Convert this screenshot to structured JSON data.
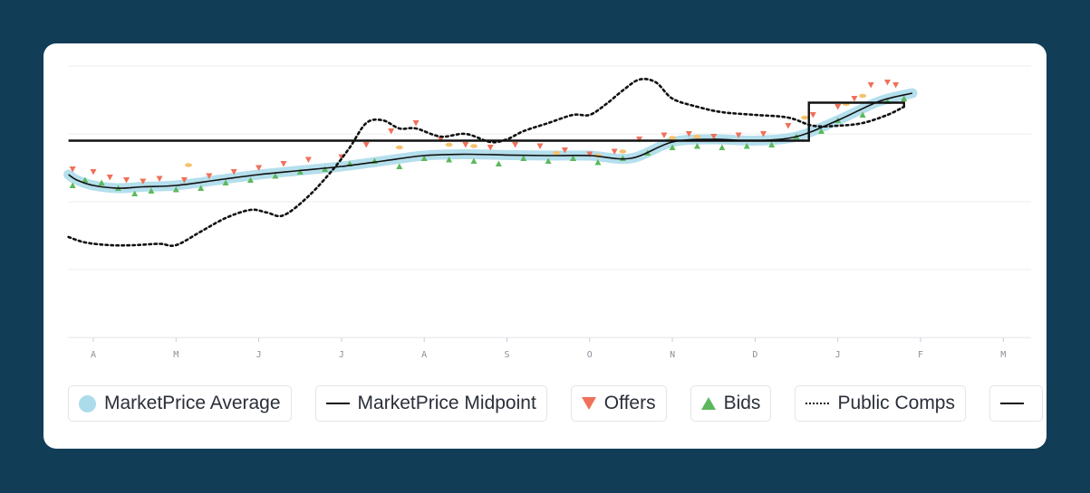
{
  "chart_data": {
    "type": "line",
    "title": "",
    "xlabel": "",
    "ylabel": "",
    "x_ticks": [
      "A",
      "M",
      "J",
      "J",
      "A",
      "S",
      "O",
      "N",
      "D",
      "J",
      "F",
      "M"
    ],
    "x_range": [
      0,
      11.3
    ],
    "y_range": [
      0,
      100
    ],
    "grid": true,
    "series": [
      {
        "name": "MarketPrice Average",
        "style": "thick light-blue band",
        "color": "#acdcea",
        "x": [
          -0.3,
          -0.2,
          0,
          0.3,
          0.6,
          1,
          1.5,
          2,
          2.5,
          3,
          3.5,
          4,
          4.5,
          5,
          5.5,
          6,
          6.5,
          7,
          7.5,
          8,
          8.5,
          9,
          9.5,
          9.9
        ],
        "values": [
          60,
          58,
          56,
          55,
          55.5,
          56,
          58,
          60,
          61.5,
          63,
          65,
          67,
          67.5,
          67.2,
          67,
          67,
          66,
          72,
          73,
          72.5,
          74,
          80,
          87,
          90
        ]
      },
      {
        "name": "MarketPrice Midpoint",
        "style": "solid black step line",
        "color": "#111111",
        "points": [
          [
            -0.3,
            72.5
          ],
          [
            8.65,
            72.5
          ],
          [
            8.65,
            86.5
          ],
          [
            9.8,
            86.5
          ],
          [
            9.8,
            85
          ]
        ]
      },
      {
        "name": "Offers",
        "style": "downward red triangles",
        "color": "#f0705a",
        "x": [
          -0.25,
          0,
          0.2,
          0.4,
          0.6,
          0.8,
          1.1,
          1.4,
          1.7,
          2,
          2.3,
          2.6,
          3,
          3.3,
          3.6,
          3.9,
          4.2,
          4.5,
          4.8,
          5.1,
          5.4,
          5.7,
          6,
          6.3,
          6.6,
          6.9,
          7.2,
          7.5,
          7.8,
          8.1,
          8.4,
          8.7,
          9,
          9.2,
          9.4,
          9.6,
          9.7
        ],
        "values": [
          62,
          61,
          59,
          58,
          57.5,
          58.5,
          58,
          59.5,
          61,
          62.5,
          64,
          65.5,
          66.5,
          71,
          76,
          79,
          73,
          71,
          70,
          71,
          70.5,
          69,
          67.5,
          68.5,
          73,
          74.5,
          75,
          74,
          74.5,
          75,
          78,
          82,
          85,
          88,
          93,
          94,
          93
        ]
      },
      {
        "name": "Bids",
        "style": "upward green triangles",
        "color": "#5cb85c",
        "x": [
          -0.25,
          -0.1,
          0.1,
          0.3,
          0.5,
          0.7,
          1,
          1.3,
          1.6,
          1.9,
          2.2,
          2.5,
          2.8,
          3.1,
          3.4,
          3.7,
          4,
          4.3,
          4.6,
          4.9,
          5.2,
          5.5,
          5.8,
          6.1,
          6.4,
          6.7,
          7,
          7.3,
          7.6,
          7.9,
          8.2,
          8.5,
          8.8,
          9,
          9.3,
          9.6,
          9.8
        ],
        "values": [
          56,
          58,
          57,
          55,
          53,
          54,
          54.5,
          55,
          57,
          58,
          59.5,
          61,
          62,
          64,
          65,
          63,
          66,
          65.5,
          65,
          64,
          66,
          65,
          66,
          64.5,
          66,
          68,
          70,
          70.5,
          70,
          70.5,
          71,
          74,
          76,
          80,
          82,
          87,
          88
        ]
      },
      {
        "name": "Public Comps",
        "style": "dotted black line",
        "color": "#111111",
        "x": [
          -0.3,
          -0.1,
          0.2,
          0.5,
          0.8,
          1,
          1.3,
          1.6,
          1.9,
          2.1,
          2.3,
          2.6,
          2.9,
          3.1,
          3.3,
          3.5,
          3.7,
          3.9,
          4.2,
          4.5,
          4.8,
          5,
          5.2,
          5.5,
          5.8,
          6,
          6.2,
          6.4,
          6.6,
          6.8,
          7,
          7.3,
          7.6,
          8,
          8.4,
          8.7,
          9,
          9.3,
          9.6,
          9.8
        ],
        "values": [
          37,
          35,
          34,
          34,
          34.5,
          34,
          39,
          44,
          47,
          46,
          45,
          52,
          62,
          70,
          79,
          80,
          77,
          77,
          74,
          75,
          72,
          73,
          76,
          79,
          82,
          82,
          86,
          91,
          95,
          94,
          88,
          85,
          83,
          82,
          81,
          78,
          78,
          79,
          82,
          85
        ]
      }
    ],
    "extra_points": {
      "name": "Orange markers",
      "color": "#f5c26b",
      "x": [
        1.15,
        3.7,
        4.3,
        4.6,
        5.6,
        6.1,
        6.4,
        7,
        7.3,
        8.6,
        9.1,
        9.3
      ],
      "values": [
        63.5,
        70,
        71,
        70.5,
        68,
        67,
        68.5,
        73.5,
        74,
        81,
        86,
        89
      ]
    }
  },
  "legend": {
    "items": [
      {
        "label": "MarketPrice Average"
      },
      {
        "label": "MarketPrice Midpoint"
      },
      {
        "label": "Offers"
      },
      {
        "label": "Bids"
      },
      {
        "label": "Public Comps"
      },
      {
        "label": ""
      }
    ]
  },
  "colors": {
    "background": "#123d57",
    "card": "#ffffff",
    "grid": "#eceef1",
    "average_band": "#acdcea",
    "offers": "#f0705a",
    "bids": "#5cb85c",
    "midpoint": "#111111"
  }
}
